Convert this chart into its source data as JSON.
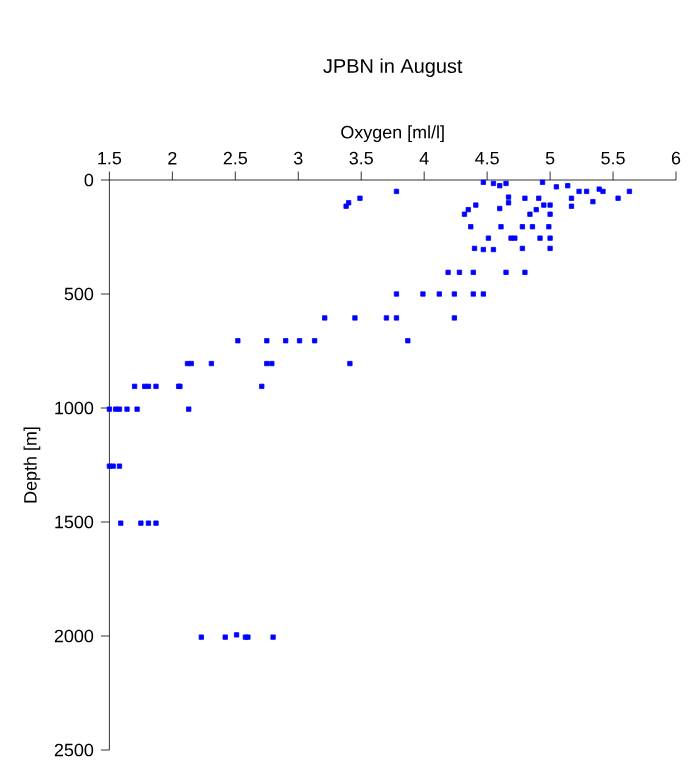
{
  "chart_data": {
    "type": "scatter",
    "title": "JPBN in August",
    "xlabel": "Oxygen [ml/l]",
    "ylabel": "Depth [m]",
    "xlim": [
      1.5,
      6
    ],
    "ylim": [
      2500,
      0
    ],
    "xticks": [
      1.5,
      2,
      2.5,
      3,
      3.5,
      4,
      4.5,
      5,
      5.5,
      6
    ],
    "yticks": [
      0,
      500,
      1000,
      1500,
      2000,
      2500
    ],
    "marker": "square",
    "grid": false,
    "series": [
      {
        "color": "#0000ff",
        "x": [
          4.47,
          4.55,
          4.6,
          4.65,
          4.94,
          5.05,
          5.14,
          5.23,
          5.29,
          5.39,
          5.42,
          5.34,
          5.54,
          5.63,
          3.78,
          3.49,
          3.38,
          3.4,
          4.67,
          4.67,
          4.8,
          4.91,
          4.95,
          5.0,
          4.89,
          4.84,
          5.0,
          5.17,
          5.17,
          4.41,
          4.35,
          4.32,
          4.6,
          4.37,
          4.61,
          4.78,
          4.86,
          4.99,
          4.51,
          4.69,
          4.72,
          5.0,
          4.92,
          5.0,
          4.78,
          4.4,
          4.47,
          4.55,
          4.19,
          4.28,
          4.39,
          4.65,
          4.8,
          3.78,
          3.99,
          4.12,
          4.24,
          4.39,
          4.47,
          3.21,
          3.45,
          3.7,
          3.78,
          4.24,
          2.52,
          2.75,
          2.9,
          3.01,
          3.13,
          3.87,
          2.12,
          2.15,
          2.31,
          2.75,
          2.79,
          3.41,
          1.7,
          1.78,
          1.81,
          1.87,
          2.05,
          2.06,
          2.71,
          1.5,
          1.55,
          1.58,
          1.64,
          1.72,
          2.13,
          1.5,
          1.53,
          1.58,
          1.59,
          1.75,
          1.81,
          1.87,
          2.23,
          2.42,
          2.51,
          2.58,
          2.6,
          2.8
        ],
        "values": [
          10,
          15,
          25,
          15,
          10,
          30,
          25,
          50,
          50,
          40,
          50,
          95,
          80,
          50,
          50,
          80,
          115,
          100,
          75,
          100,
          80,
          80,
          110,
          110,
          130,
          150,
          150,
          80,
          115,
          110,
          130,
          150,
          125,
          205,
          205,
          205,
          205,
          205,
          255,
          255,
          255,
          255,
          255,
          300,
          300,
          300,
          305,
          305,
          405,
          405,
          405,
          405,
          405,
          500,
          500,
          500,
          500,
          500,
          500,
          605,
          605,
          605,
          605,
          605,
          705,
          705,
          705,
          705,
          705,
          705,
          805,
          805,
          805,
          805,
          805,
          805,
          905,
          905,
          905,
          905,
          905,
          905,
          905,
          1005,
          1005,
          1005,
          1005,
          1005,
          1005,
          1255,
          1255,
          1255,
          1505,
          1505,
          1505,
          1505,
          2005,
          2005,
          1995,
          2005,
          2005,
          2005
        ]
      }
    ]
  }
}
